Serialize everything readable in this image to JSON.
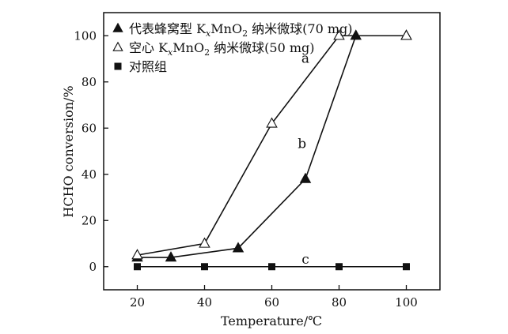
{
  "chart_data": {
    "type": "line",
    "title": "",
    "xlabel": "Temperature/℃",
    "ylabel": "HCHO conversion/%",
    "xlim": [
      10,
      110
    ],
    "ylim": [
      -10,
      110
    ],
    "xticks": [
      20,
      40,
      60,
      80,
      100
    ],
    "yticks": [
      0,
      20,
      40,
      60,
      80,
      100
    ],
    "xtick_labels": [
      "20",
      "40",
      "60",
      "80",
      "100"
    ],
    "ytick_labels": [
      "0",
      "20",
      "40",
      "60",
      "80",
      "100"
    ],
    "legend_position": "top-left",
    "series": [
      {
        "name": "代表蜂窝型 KxMnO2 纳米微球(70 mg)",
        "legend_rich": [
          {
            "t": "代表蜂窝型 K"
          },
          {
            "t": "x",
            "italic": true,
            "sub": true
          },
          {
            "t": "MnO"
          },
          {
            "t": "2",
            "sub": true
          },
          {
            "t": " 纳米微球(70 mg)"
          }
        ],
        "marker": "filled-triangle",
        "curve_label": "b",
        "x": [
          20,
          30,
          50,
          70,
          85,
          100
        ],
        "y": [
          4,
          4,
          8,
          38,
          100,
          100
        ]
      },
      {
        "name": "空心 KxMnO2 纳米微球(50 mg)",
        "legend_rich": [
          {
            "t": "空心 K"
          },
          {
            "t": "x",
            "italic": true,
            "sub": true
          },
          {
            "t": "MnO"
          },
          {
            "t": "2",
            "sub": true
          },
          {
            "t": " 纳米微球(50 mg)"
          }
        ],
        "marker": "open-triangle",
        "curve_label": "a",
        "x": [
          20,
          40,
          60,
          80,
          100
        ],
        "y": [
          5,
          10,
          62,
          100,
          100
        ]
      },
      {
        "name": "对照组",
        "legend_rich": [
          {
            "t": "对照组"
          }
        ],
        "marker": "filled-square",
        "curve_label": "c",
        "x": [
          20,
          40,
          60,
          80,
          100
        ],
        "y": [
          0,
          0,
          0,
          0,
          0
        ]
      }
    ],
    "curve_label_anchors": {
      "a": {
        "x": 70,
        "y": 90
      },
      "b": {
        "x": 69,
        "y": 53
      },
      "c": {
        "x": 70,
        "y": 3
      }
    }
  }
}
